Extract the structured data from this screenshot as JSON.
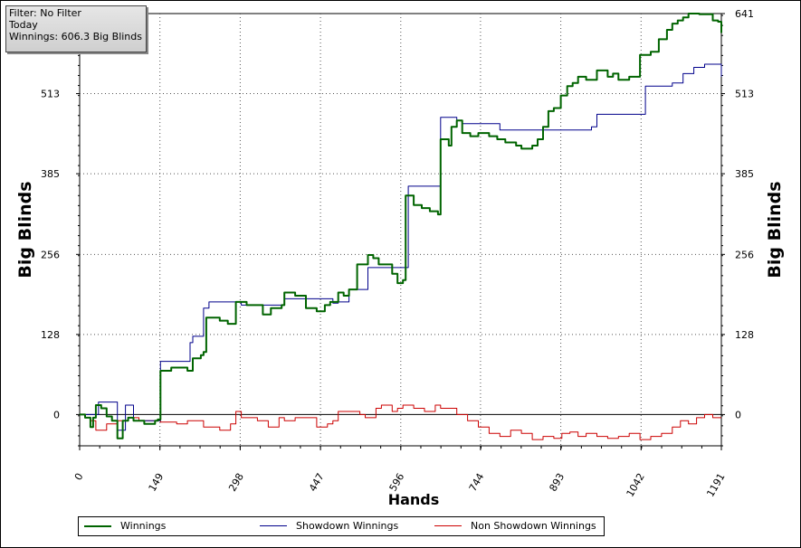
{
  "info": {
    "filter": "Filter: No Filter",
    "period": "Today",
    "winnings": "Winnings: 606.3 Big Blinds"
  },
  "legend": {
    "winnings": "Winnings",
    "showdown": "Showdown Winnings",
    "non_showdown": "Non Showdown Winnings"
  },
  "chart_data": {
    "type": "line",
    "xlabel": "Hands",
    "ylabel": "Big Blinds",
    "xlim": [
      0,
      1191
    ],
    "ylim": [
      -50,
      641
    ],
    "x_ticks": [
      "0",
      "149",
      "298",
      "447",
      "596",
      "744",
      "893",
      "1042",
      "1191"
    ],
    "y_ticks": [
      "0",
      "128",
      "256",
      "385",
      "513",
      "641"
    ],
    "grid": true,
    "legend_position": "bottom",
    "series": [
      {
        "name": "Winnings",
        "color": "#006400",
        "points": [
          [
            0,
            0
          ],
          [
            10,
            -5
          ],
          [
            20,
            -20
          ],
          [
            25,
            -5
          ],
          [
            30,
            15
          ],
          [
            40,
            10
          ],
          [
            50,
            -3
          ],
          [
            60,
            -10
          ],
          [
            70,
            -38
          ],
          [
            80,
            -10
          ],
          [
            90,
            -5
          ],
          [
            100,
            -10
          ],
          [
            120,
            -15
          ],
          [
            140,
            -10
          ],
          [
            145,
            -8
          ],
          [
            150,
            70
          ],
          [
            170,
            75
          ],
          [
            195,
            75
          ],
          [
            200,
            70
          ],
          [
            210,
            90
          ],
          [
            225,
            95
          ],
          [
            230,
            100
          ],
          [
            235,
            155
          ],
          [
            260,
            150
          ],
          [
            275,
            145
          ],
          [
            290,
            180
          ],
          [
            310,
            175
          ],
          [
            330,
            175
          ],
          [
            340,
            160
          ],
          [
            355,
            170
          ],
          [
            375,
            175
          ],
          [
            380,
            195
          ],
          [
            400,
            190
          ],
          [
            420,
            170
          ],
          [
            440,
            165
          ],
          [
            455,
            175
          ],
          [
            465,
            180
          ],
          [
            480,
            195
          ],
          [
            490,
            190
          ],
          [
            500,
            200
          ],
          [
            515,
            240
          ],
          [
            525,
            240
          ],
          [
            535,
            255
          ],
          [
            545,
            250
          ],
          [
            555,
            240
          ],
          [
            565,
            240
          ],
          [
            580,
            225
          ],
          [
            590,
            210
          ],
          [
            600,
            215
          ],
          [
            605,
            350
          ],
          [
            620,
            335
          ],
          [
            635,
            330
          ],
          [
            650,
            325
          ],
          [
            665,
            320
          ],
          [
            670,
            440
          ],
          [
            685,
            430
          ],
          [
            690,
            460
          ],
          [
            700,
            470
          ],
          [
            710,
            450
          ],
          [
            725,
            445
          ],
          [
            740,
            450
          ],
          [
            760,
            445
          ],
          [
            775,
            440
          ],
          [
            790,
            435
          ],
          [
            810,
            430
          ],
          [
            820,
            425
          ],
          [
            830,
            425
          ],
          [
            840,
            430
          ],
          [
            850,
            440
          ],
          [
            860,
            460
          ],
          [
            870,
            485
          ],
          [
            880,
            490
          ],
          [
            893,
            510
          ],
          [
            905,
            525
          ],
          [
            915,
            530
          ],
          [
            925,
            540
          ],
          [
            940,
            535
          ],
          [
            960,
            550
          ],
          [
            980,
            540
          ],
          [
            990,
            545
          ],
          [
            1000,
            535
          ],
          [
            1010,
            535
          ],
          [
            1020,
            540
          ],
          [
            1030,
            540
          ],
          [
            1040,
            575
          ],
          [
            1050,
            575
          ],
          [
            1060,
            580
          ],
          [
            1075,
            600
          ],
          [
            1090,
            615
          ],
          [
            1100,
            625
          ],
          [
            1110,
            630
          ],
          [
            1120,
            635
          ],
          [
            1130,
            641
          ],
          [
            1150,
            640
          ],
          [
            1165,
            640
          ],
          [
            1175,
            630
          ],
          [
            1185,
            628
          ],
          [
            1191,
            610
          ]
        ]
      },
      {
        "name": "Showdown Winnings",
        "color": "#00008b",
        "points": [
          [
            0,
            0
          ],
          [
            15,
            0
          ],
          [
            35,
            20
          ],
          [
            60,
            20
          ],
          [
            70,
            -25
          ],
          [
            80,
            -25
          ],
          [
            85,
            15
          ],
          [
            95,
            15
          ],
          [
            100,
            -10
          ],
          [
            145,
            -10
          ],
          [
            150,
            85
          ],
          [
            180,
            85
          ],
          [
            195,
            85
          ],
          [
            205,
            115
          ],
          [
            210,
            125
          ],
          [
            225,
            125
          ],
          [
            230,
            170
          ],
          [
            240,
            180
          ],
          [
            290,
            180
          ],
          [
            300,
            175
          ],
          [
            380,
            185
          ],
          [
            400,
            185
          ],
          [
            460,
            185
          ],
          [
            470,
            178
          ],
          [
            480,
            180
          ],
          [
            500,
            200
          ],
          [
            535,
            235
          ],
          [
            595,
            235
          ],
          [
            610,
            365
          ],
          [
            640,
            365
          ],
          [
            670,
            475
          ],
          [
            700,
            470
          ],
          [
            710,
            465
          ],
          [
            760,
            465
          ],
          [
            780,
            455
          ],
          [
            820,
            455
          ],
          [
            880,
            455
          ],
          [
            950,
            460
          ],
          [
            960,
            480
          ],
          [
            1040,
            480
          ],
          [
            1050,
            525
          ],
          [
            1100,
            530
          ],
          [
            1120,
            545
          ],
          [
            1140,
            555
          ],
          [
            1160,
            560
          ],
          [
            1185,
            560
          ],
          [
            1191,
            540
          ]
        ]
      },
      {
        "name": "Non Showdown Winnings",
        "color": "#cc0000",
        "points": [
          [
            0,
            0
          ],
          [
            10,
            -5
          ],
          [
            20,
            -10
          ],
          [
            30,
            -25
          ],
          [
            50,
            -15
          ],
          [
            70,
            -10
          ],
          [
            90,
            -5
          ],
          [
            110,
            -10
          ],
          [
            140,
            -10
          ],
          [
            150,
            -12
          ],
          [
            180,
            -15
          ],
          [
            200,
            -10
          ],
          [
            230,
            -20
          ],
          [
            260,
            -25
          ],
          [
            280,
            -15
          ],
          [
            290,
            5
          ],
          [
            300,
            -5
          ],
          [
            330,
            -10
          ],
          [
            350,
            -20
          ],
          [
            370,
            -5
          ],
          [
            380,
            -10
          ],
          [
            400,
            -5
          ],
          [
            420,
            -5
          ],
          [
            440,
            -20
          ],
          [
            460,
            -15
          ],
          [
            470,
            -10
          ],
          [
            480,
            5
          ],
          [
            500,
            5
          ],
          [
            520,
            0
          ],
          [
            530,
            -5
          ],
          [
            550,
            10
          ],
          [
            560,
            15
          ],
          [
            580,
            5
          ],
          [
            590,
            10
          ],
          [
            600,
            15
          ],
          [
            620,
            10
          ],
          [
            640,
            5
          ],
          [
            660,
            15
          ],
          [
            670,
            10
          ],
          [
            680,
            10
          ],
          [
            700,
            0
          ],
          [
            720,
            -10
          ],
          [
            740,
            -20
          ],
          [
            760,
            -30
          ],
          [
            780,
            -35
          ],
          [
            800,
            -25
          ],
          [
            820,
            -30
          ],
          [
            840,
            -40
          ],
          [
            860,
            -35
          ],
          [
            880,
            -38
          ],
          [
            895,
            -30
          ],
          [
            910,
            -28
          ],
          [
            925,
            -35
          ],
          [
            940,
            -30
          ],
          [
            960,
            -35
          ],
          [
            980,
            -38
          ],
          [
            1000,
            -35
          ],
          [
            1020,
            -30
          ],
          [
            1040,
            -40
          ],
          [
            1060,
            -35
          ],
          [
            1080,
            -30
          ],
          [
            1100,
            -20
          ],
          [
            1115,
            -10
          ],
          [
            1130,
            -15
          ],
          [
            1145,
            -5
          ],
          [
            1160,
            0
          ],
          [
            1175,
            -5
          ],
          [
            1191,
            -5
          ]
        ]
      }
    ]
  }
}
